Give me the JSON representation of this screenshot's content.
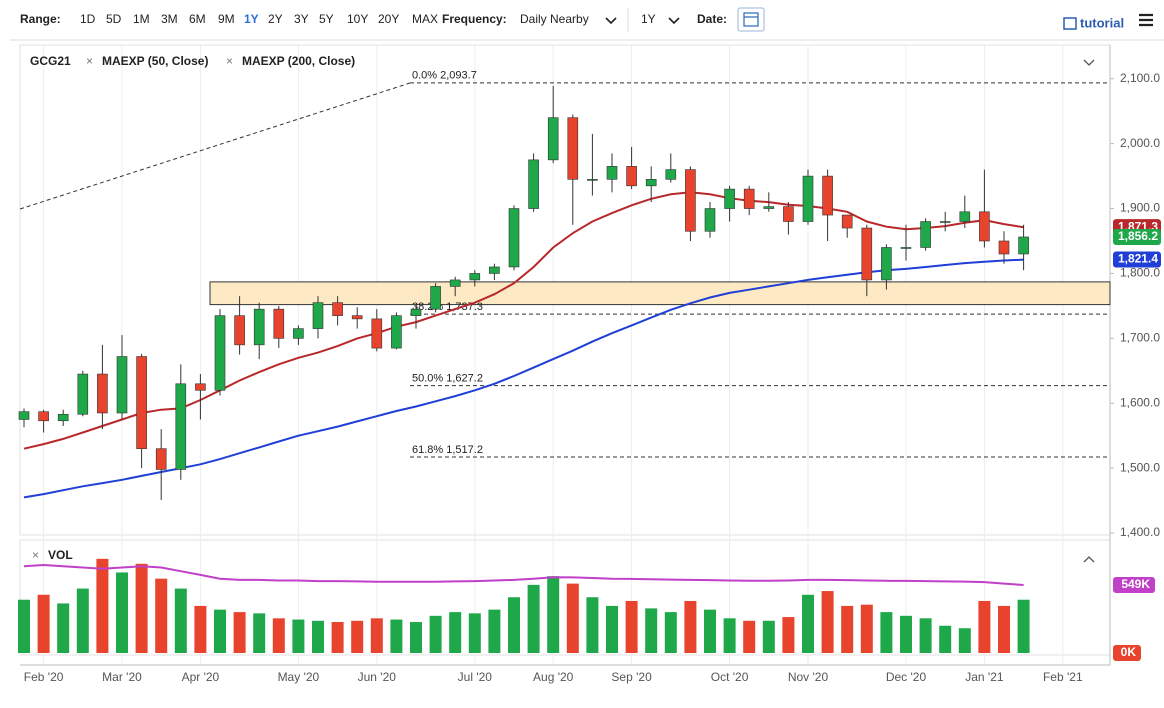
{
  "toolbar": {
    "range_label": "Range:",
    "ranges": [
      "1D",
      "5D",
      "1M",
      "3M",
      "6M",
      "9M",
      "1Y",
      "2Y",
      "3Y",
      "5Y",
      "10Y",
      "20Y",
      "MAX"
    ],
    "active_range": 6,
    "frequency_label": "Frequency:",
    "frequency": "Daily Nearby",
    "period": "1Y",
    "date_label": "Date:",
    "tutorial": "tutorial"
  },
  "chart_data": [
    {
      "type": "candlestick",
      "symbol": "GCG21",
      "up_color": "#1fa84a",
      "down_color": "#e8432c",
      "categories": [
        null,
        "Feb '20",
        null,
        null,
        null,
        "Mar '20",
        null,
        null,
        null,
        "Apr '20",
        null,
        null,
        null,
        null,
        "May '20",
        null,
        null,
        null,
        "Jun '20",
        null,
        null,
        null,
        null,
        "Jul '20",
        null,
        null,
        null,
        "Aug '20",
        null,
        null,
        null,
        "Sep '20",
        null,
        null,
        null,
        null,
        "Oct '20",
        null,
        null,
        null,
        "Nov '20",
        null,
        null,
        null,
        null,
        "Dec '20",
        null,
        null,
        null,
        "Jan '21",
        null,
        null,
        null,
        "Feb '21",
        null
      ],
      "open": [
        1575,
        1587,
        1573,
        1583,
        1645,
        1585,
        1672,
        1530,
        1498,
        1630,
        1620,
        1735,
        1690,
        1745,
        1700,
        1715,
        1755,
        1735,
        1730,
        1685,
        1735,
        1745,
        1780,
        1790,
        1800,
        1810,
        1900,
        1975,
        2040,
        1945,
        1945,
        1965,
        1935,
        1945,
        1960,
        1865,
        1900,
        1930,
        1900,
        1903,
        1880,
        1950,
        1890,
        1870,
        1790,
        1840,
        1840,
        1880,
        1880,
        1895,
        1850,
        1830,
        null,
        null,
        null
      ],
      "high": [
        1592,
        1590,
        1590,
        1650,
        1690,
        1705,
        1676,
        1560,
        1660,
        1645,
        1745,
        1765,
        1755,
        1750,
        1720,
        1765,
        1765,
        1748,
        1745,
        1740,
        1750,
        1785,
        1795,
        1805,
        1815,
        1905,
        1985,
        2089,
        2045,
        2015,
        1985,
        1995,
        1965,
        1985,
        1965,
        1910,
        1935,
        1935,
        1925,
        1910,
        1960,
        1960,
        1890,
        1875,
        1845,
        1875,
        1885,
        1895,
        1920,
        1960,
        1865,
        1875,
        null,
        null,
        null
      ],
      "low": [
        1563,
        1555,
        1565,
        1580,
        1560,
        1575,
        1500,
        1451,
        1482,
        1575,
        1612,
        1675,
        1668,
        1685,
        1690,
        1700,
        1720,
        1715,
        1680,
        1683,
        1715,
        1740,
        1765,
        1780,
        1790,
        1805,
        1895,
        1970,
        1875,
        1920,
        1925,
        1930,
        1910,
        1940,
        1850,
        1855,
        1880,
        1890,
        1895,
        1860,
        1875,
        1850,
        1855,
        1765,
        1775,
        1820,
        1835,
        1865,
        1870,
        1840,
        1815,
        1805,
        null,
        null,
        null
      ],
      "close": [
        1587,
        1573,
        1583,
        1645,
        1585,
        1672,
        1530,
        1498,
        1630,
        1620,
        1735,
        1690,
        1745,
        1700,
        1715,
        1755,
        1735,
        1730,
        1685,
        1735,
        1745,
        1780,
        1790,
        1800,
        1810,
        1900,
        1975,
        2040,
        1945,
        1945,
        1965,
        1935,
        1945,
        1960,
        1865,
        1900,
        1930,
        1900,
        1903,
        1880,
        1950,
        1890,
        1870,
        1790,
        1840,
        1840,
        1880,
        1880,
        1895,
        1850,
        1830,
        1856.2,
        null,
        null,
        null
      ],
      "close_label": "1,856.2",
      "series": [
        {
          "name": "MAEXP (50, Close)",
          "color": "#b8282a",
          "last_label": "1,871.3",
          "values": [
            1530,
            1537,
            1545,
            1555,
            1565,
            1575,
            1585,
            1590,
            1592,
            1605,
            1620,
            1635,
            1648,
            1660,
            1670,
            1678,
            1688,
            1700,
            1708,
            1718,
            1725,
            1735,
            1745,
            1755,
            1768,
            1785,
            1810,
            1840,
            1862,
            1880,
            1893,
            1905,
            1915,
            1922,
            1925,
            1922,
            1916,
            1912,
            1910,
            1906,
            1904,
            1900,
            1895,
            1880,
            1872,
            1868,
            1870,
            1873,
            1878,
            1882,
            1876,
            1871.3,
            null,
            null,
            null
          ]
        },
        {
          "name": "MAEXP (200, Close)",
          "color": "#1f3fd6",
          "last_label": "1,821.4",
          "values": [
            1455,
            1460,
            1466,
            1472,
            1477,
            1482,
            1488,
            1494,
            1500,
            1506,
            1514,
            1523,
            1532,
            1541,
            1550,
            1557,
            1564,
            1572,
            1580,
            1588,
            1595,
            1603,
            1611,
            1620,
            1630,
            1642,
            1655,
            1668,
            1681,
            1695,
            1708,
            1720,
            1732,
            1744,
            1754,
            1763,
            1770,
            1775,
            1780,
            1785,
            1790,
            1794,
            1798,
            1802,
            1805,
            1807,
            1810,
            1813,
            1816,
            1818,
            1820,
            1821.4,
            null,
            null,
            null
          ]
        }
      ],
      "fib_levels": [
        {
          "value": 2093.7,
          "label": "0.0% 2,093.7"
        },
        {
          "value": 1737.3,
          "label": "38.2% 1,737.3"
        },
        {
          "value": 1627.2,
          "label": "50.0% 1,627.2"
        },
        {
          "value": 1517.2,
          "label": "61.8% 1,517.2"
        }
      ],
      "support_zone": {
        "low": 1752,
        "high": 1787,
        "color": "#fde9c4"
      },
      "ylim": [
        1397,
        2152
      ],
      "yticks": [
        {
          "value": 1400,
          "label": "1,400.0"
        },
        {
          "value": 1500,
          "label": "1,500.0"
        },
        {
          "value": 1600,
          "label": "1,600.0"
        },
        {
          "value": 1700,
          "label": "1,700.0"
        },
        {
          "value": 1800,
          "label": "1,800.0"
        },
        {
          "value": 1900,
          "label": "1,900.0"
        },
        {
          "value": 2000,
          "label": "2,000.0"
        },
        {
          "value": 2100,
          "label": "2,100.0"
        }
      ],
      "xgrid": true
    },
    {
      "type": "volume",
      "title": "VOL",
      "values": [
        430,
        470,
        400,
        520,
        760,
        650,
        720,
        600,
        520,
        380,
        350,
        330,
        320,
        280,
        270,
        260,
        250,
        260,
        280,
        270,
        250,
        300,
        330,
        320,
        350,
        450,
        550,
        620,
        560,
        450,
        380,
        420,
        360,
        330,
        420,
        350,
        280,
        260,
        260,
        290,
        470,
        500,
        380,
        390,
        330,
        300,
        280,
        220,
        200,
        420,
        380,
        430,
        null,
        null,
        null
      ],
      "average": {
        "color": "#c040c8",
        "values": [
          700,
          710,
          700,
          690,
          680,
          690,
          700,
          690,
          660,
          630,
          600,
          590,
          590,
          585,
          585,
          580,
          580,
          578,
          575,
          575,
          575,
          575,
          578,
          580,
          585,
          590,
          600,
          612,
          610,
          605,
          600,
          598,
          595,
          592,
          590,
          588,
          585,
          583,
          583,
          585,
          590,
          590,
          588,
          585,
          583,
          582,
          580,
          578,
          576,
          572,
          560,
          549,
          null,
          null,
          null
        ],
        "last_label": "549K"
      },
      "ylim": [
        0,
        912
      ],
      "yticks": [
        {
          "value": 0,
          "label": "0K"
        }
      ]
    }
  ]
}
